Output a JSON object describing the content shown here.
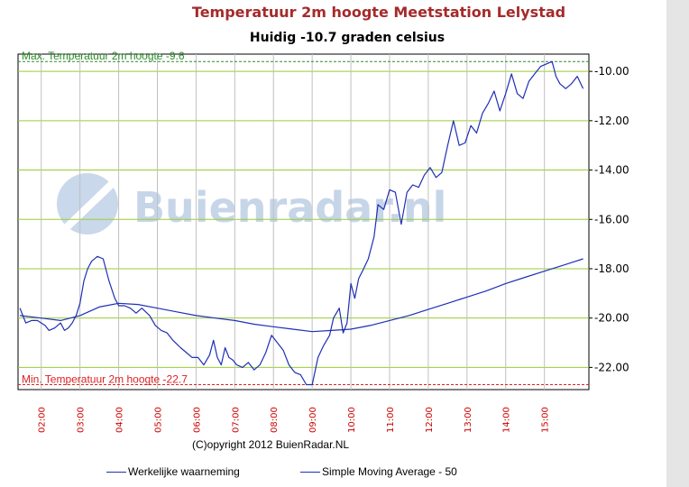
{
  "chart_data": {
    "type": "line",
    "title": "Temperatuur 2m hoogte Meetstation Lelystad",
    "subtitle": "Huidig -10.7 graden celsius",
    "copyright": "(C)opyright 2012 BuienRadar.NL",
    "watermark": "Buienradar.nl",
    "ylim": [
      -22.9,
      -9.3
    ],
    "xlim": [
      1.4,
      16.15
    ],
    "yticks": [
      -10,
      -12,
      -14,
      -16,
      -18,
      -20,
      -22
    ],
    "ytick_labels": [
      "-10.00",
      "-12.00",
      "-14.00",
      "-16.00",
      "-18.00",
      "-20.00",
      "-22.00"
    ],
    "xticks": [
      2,
      3,
      4,
      5,
      6,
      7,
      8,
      9,
      10,
      11,
      12,
      13,
      14,
      15
    ],
    "xtick_labels": [
      "02:00",
      "03:00",
      "04:00",
      "05:00",
      "06:00",
      "07:00",
      "08:00",
      "09:00",
      "10:00",
      "11:00",
      "12:00",
      "13:00",
      "14:00",
      "15:00"
    ],
    "grid": true,
    "legend_position": "bottom",
    "reference_lines": [
      {
        "label": "Max. Temperatuur 2m hoogte -9.6",
        "value": -9.6,
        "color": "#2e8b2e"
      },
      {
        "label": "Min. Temperatuur 2m hoogte -22.7",
        "value": -22.7,
        "color": "#e02020"
      }
    ],
    "series": [
      {
        "name": "Werkelijke waarneming",
        "color": "#1f2fb5",
        "x": [
          1.45,
          1.6,
          1.75,
          1.9,
          2.0,
          2.1,
          2.2,
          2.35,
          2.5,
          2.6,
          2.7,
          2.8,
          2.9,
          3.0,
          3.1,
          3.2,
          3.3,
          3.45,
          3.6,
          3.75,
          3.9,
          4.0,
          4.15,
          4.3,
          4.45,
          4.6,
          4.8,
          4.95,
          5.1,
          5.25,
          5.4,
          5.6,
          5.75,
          5.9,
          6.05,
          6.2,
          6.35,
          6.45,
          6.55,
          6.65,
          6.75,
          6.85,
          6.95,
          7.05,
          7.2,
          7.35,
          7.5,
          7.65,
          7.8,
          7.95,
          8.1,
          8.25,
          8.4,
          8.55,
          8.7,
          8.85,
          9.0,
          9.15,
          9.3,
          9.45,
          9.55,
          9.7,
          9.8,
          9.9,
          10.0,
          10.1,
          10.2,
          10.3,
          10.45,
          10.6,
          10.7,
          10.85,
          11.0,
          11.15,
          11.3,
          11.45,
          11.6,
          11.75,
          11.9,
          12.05,
          12.2,
          12.35,
          12.5,
          12.65,
          12.8,
          12.95,
          13.1,
          13.25,
          13.4,
          13.55,
          13.7,
          13.85,
          14.0,
          14.15,
          14.3,
          14.45,
          14.6,
          14.75,
          14.9,
          15.05,
          15.2,
          15.3,
          15.4,
          15.55,
          15.7,
          15.85,
          16.0
        ],
        "y": [
          -19.6,
          -20.2,
          -20.1,
          -20.1,
          -20.2,
          -20.3,
          -20.5,
          -20.4,
          -20.2,
          -20.5,
          -20.4,
          -20.2,
          -19.9,
          -19.4,
          -18.5,
          -18.0,
          -17.7,
          -17.5,
          -17.6,
          -18.5,
          -19.2,
          -19.5,
          -19.5,
          -19.6,
          -19.8,
          -19.6,
          -19.9,
          -20.3,
          -20.5,
          -20.6,
          -20.9,
          -21.2,
          -21.4,
          -21.6,
          -21.6,
          -21.9,
          -21.5,
          -20.9,
          -21.6,
          -21.9,
          -21.2,
          -21.6,
          -21.7,
          -21.9,
          -22.0,
          -21.8,
          -22.1,
          -21.9,
          -21.4,
          -20.7,
          -21.0,
          -21.3,
          -21.9,
          -22.2,
          -22.3,
          -22.7,
          -22.7,
          -21.6,
          -21.1,
          -20.7,
          -20.0,
          -19.6,
          -20.6,
          -20.2,
          -18.6,
          -19.2,
          -18.4,
          -18.1,
          -17.6,
          -16.7,
          -15.4,
          -15.6,
          -14.8,
          -14.9,
          -16.2,
          -14.9,
          -14.6,
          -14.7,
          -14.2,
          -13.9,
          -14.3,
          -14.1,
          -13.0,
          -12.0,
          -13.0,
          -12.9,
          -12.2,
          -12.5,
          -11.7,
          -11.3,
          -10.8,
          -11.6,
          -10.9,
          -10.1,
          -10.9,
          -11.1,
          -10.4,
          -10.1,
          -9.8,
          -9.7,
          -9.6,
          -10.2,
          -10.5,
          -10.7,
          -10.5,
          -10.2,
          -10.7
        ]
      },
      {
        "name": "Simple Moving Average - 50",
        "color": "#1f2fb5",
        "x": [
          1.45,
          2.0,
          2.5,
          3.0,
          3.5,
          4.0,
          4.5,
          5.0,
          5.5,
          6.0,
          6.5,
          7.0,
          7.5,
          8.0,
          8.5,
          9.0,
          9.5,
          10.0,
          10.5,
          11.0,
          11.5,
          12.0,
          12.5,
          13.0,
          13.5,
          14.0,
          14.5,
          15.0,
          15.5,
          16.0
        ],
        "y": [
          -19.9,
          -20.0,
          -20.1,
          -19.9,
          -19.55,
          -19.4,
          -19.45,
          -19.6,
          -19.75,
          -19.9,
          -20.0,
          -20.1,
          -20.25,
          -20.35,
          -20.45,
          -20.55,
          -20.5,
          -20.45,
          -20.3,
          -20.1,
          -19.9,
          -19.65,
          -19.4,
          -19.15,
          -18.9,
          -18.6,
          -18.35,
          -18.1,
          -17.85,
          -17.6
        ]
      }
    ]
  }
}
